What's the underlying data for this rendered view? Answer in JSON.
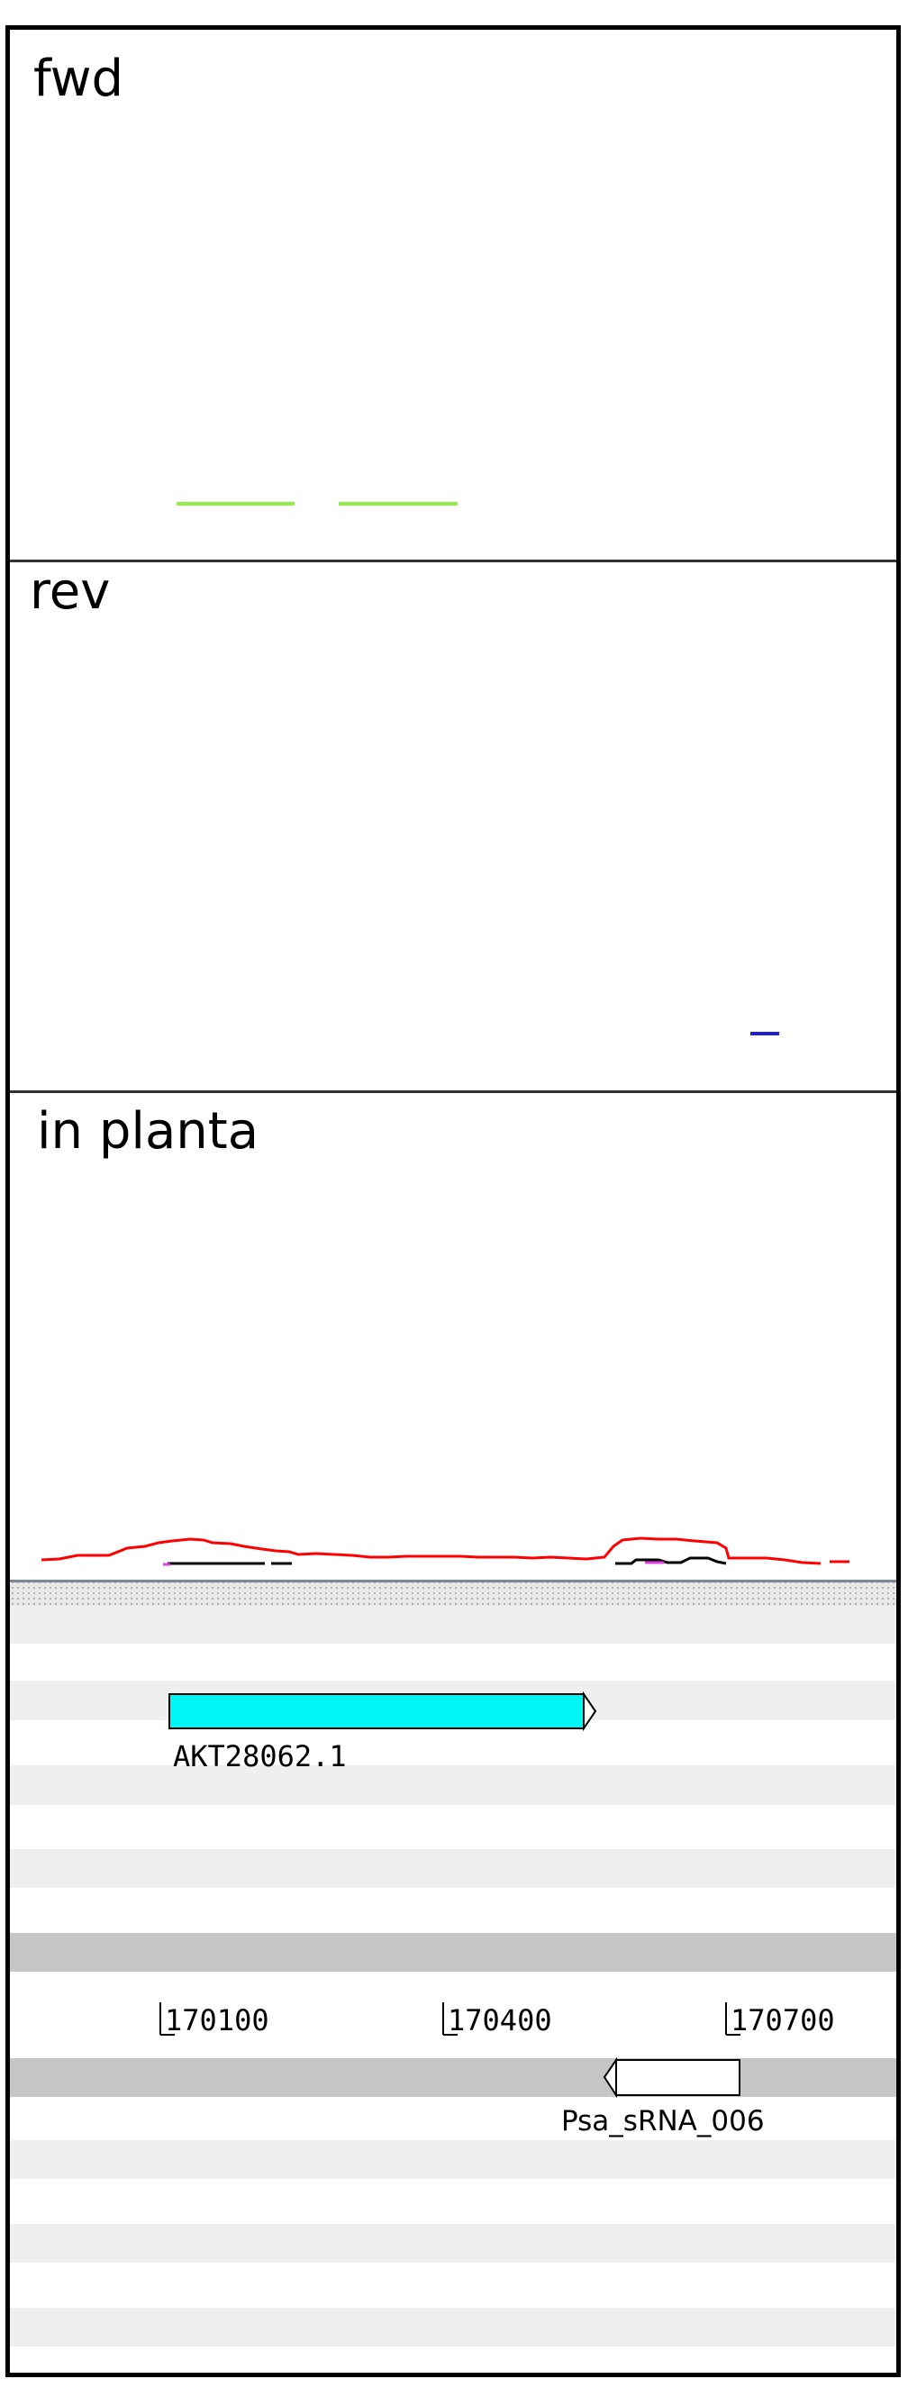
{
  "tracks": {
    "fwd": {
      "label": "fwd"
    },
    "rev": {
      "label": "rev"
    },
    "in_planta": {
      "label": "in planta"
    }
  },
  "axis": {
    "ticks": [
      "170100",
      "170400",
      "170700"
    ]
  },
  "features": {
    "gene": {
      "label": "AKT28062.1",
      "color": "#00f5f5",
      "strand": "+"
    },
    "srna": {
      "label": "Psa_sRNA_006",
      "color": "#ffffff",
      "strand": "-"
    }
  },
  "colors": {
    "fwd_signal": "#90ee40",
    "rev_signal": "#2020d0",
    "in_planta_signal": "#ff0000",
    "in_planta_secondary": "#000000",
    "in_planta_magenta": "#e040e0",
    "stripe_light": "#efefef",
    "stripe_dark": "#c6c6c6"
  }
}
